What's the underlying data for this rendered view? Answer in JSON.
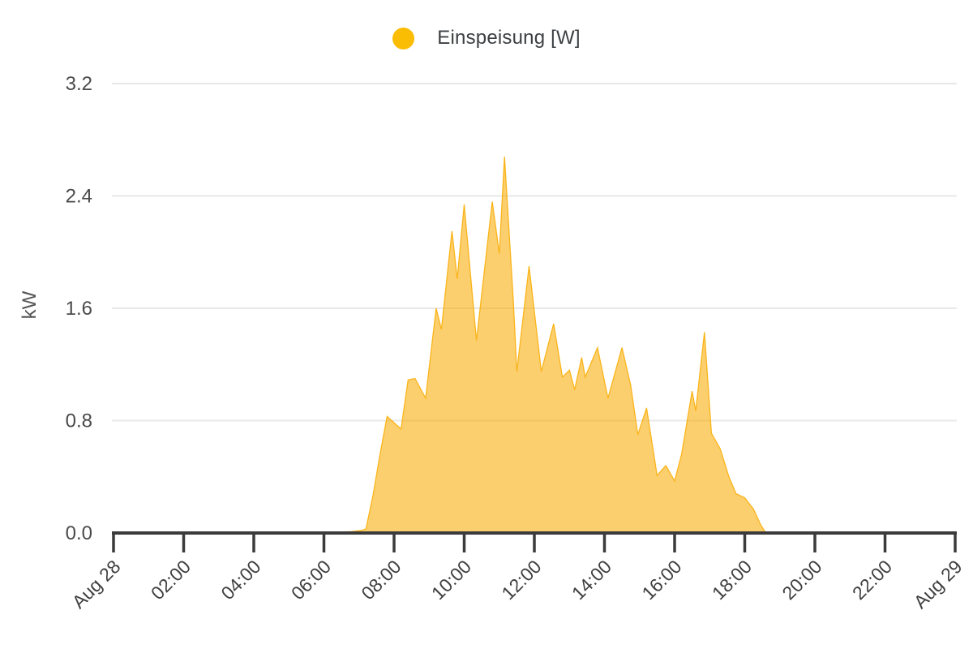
{
  "legend": {
    "label": "Einspeisung [W]",
    "color": "#FBBC04"
  },
  "colors": {
    "series": "#FBBC04",
    "area_fill": "#F9AB00",
    "axis_line": "#3b3b3b",
    "gridline": "#e8e8e8",
    "tick_text": "#3f3f3f",
    "y_tick_text": "#4a4a4a",
    "axis_title_text": "#555555",
    "background": "#ffffff"
  },
  "chart_data": {
    "type": "area",
    "series_name": "Einspeisung [W]",
    "xlabel": "",
    "ylabel": "kW",
    "xlim_hours": [
      0,
      24
    ],
    "ylim": [
      0,
      3.2
    ],
    "grid": "horizontal",
    "legend_position": "top-center",
    "area_opacity": 0.57,
    "y_ticks": [
      0.0,
      0.8,
      1.6,
      2.4,
      3.2
    ],
    "y_tick_labels": [
      "0.0",
      "0.8",
      "1.6",
      "2.4",
      "3.2"
    ],
    "x_ticks_hours": [
      0,
      2,
      4,
      6,
      8,
      10,
      12,
      14,
      16,
      18,
      20,
      22,
      24
    ],
    "x_tick_labels": [
      "Aug 28",
      "02:00",
      "04:00",
      "06:00",
      "08:00",
      "10:00",
      "12:00",
      "14:00",
      "16:00",
      "18:00",
      "20:00",
      "22:00",
      "Aug 29"
    ],
    "points_hour_kw": [
      [
        0,
        0
      ],
      [
        1,
        0
      ],
      [
        2,
        0
      ],
      [
        3,
        0
      ],
      [
        4,
        0
      ],
      [
        5,
        0
      ],
      [
        6,
        0
      ],
      [
        6.3,
        0.005
      ],
      [
        6.8,
        0.01
      ],
      [
        7.1,
        0.02
      ],
      [
        7.2,
        0.03
      ],
      [
        7.4,
        0.27
      ],
      [
        7.6,
        0.56
      ],
      [
        7.8,
        0.83
      ],
      [
        8.2,
        0.74
      ],
      [
        8.4,
        1.09
      ],
      [
        8.6,
        1.1
      ],
      [
        8.9,
        0.96
      ],
      [
        9.2,
        1.6
      ],
      [
        9.35,
        1.45
      ],
      [
        9.65,
        2.15
      ],
      [
        9.8,
        1.81
      ],
      [
        10.0,
        2.34
      ],
      [
        10.35,
        1.37
      ],
      [
        10.8,
        2.36
      ],
      [
        11.0,
        1.99
      ],
      [
        11.15,
        2.68
      ],
      [
        11.4,
        1.66
      ],
      [
        11.5,
        1.15
      ],
      [
        11.85,
        1.9
      ],
      [
        12.2,
        1.15
      ],
      [
        12.55,
        1.49
      ],
      [
        12.8,
        1.11
      ],
      [
        13.0,
        1.16
      ],
      [
        13.15,
        1.02
      ],
      [
        13.35,
        1.25
      ],
      [
        13.45,
        1.11
      ],
      [
        13.8,
        1.32
      ],
      [
        14.1,
        0.96
      ],
      [
        14.5,
        1.32
      ],
      [
        14.75,
        1.05
      ],
      [
        14.95,
        0.7
      ],
      [
        15.2,
        0.89
      ],
      [
        15.5,
        0.41
      ],
      [
        15.75,
        0.48
      ],
      [
        16.0,
        0.37
      ],
      [
        16.2,
        0.56
      ],
      [
        16.5,
        1.01
      ],
      [
        16.6,
        0.87
      ],
      [
        16.85,
        1.43
      ],
      [
        17.05,
        0.71
      ],
      [
        17.3,
        0.6
      ],
      [
        17.55,
        0.4
      ],
      [
        17.75,
        0.28
      ],
      [
        18.0,
        0.25
      ],
      [
        18.25,
        0.17
      ],
      [
        18.45,
        0.06
      ],
      [
        18.6,
        0
      ],
      [
        19,
        0
      ],
      [
        20,
        0
      ],
      [
        21,
        0
      ],
      [
        22,
        0
      ],
      [
        23,
        0
      ],
      [
        24,
        0
      ]
    ]
  }
}
